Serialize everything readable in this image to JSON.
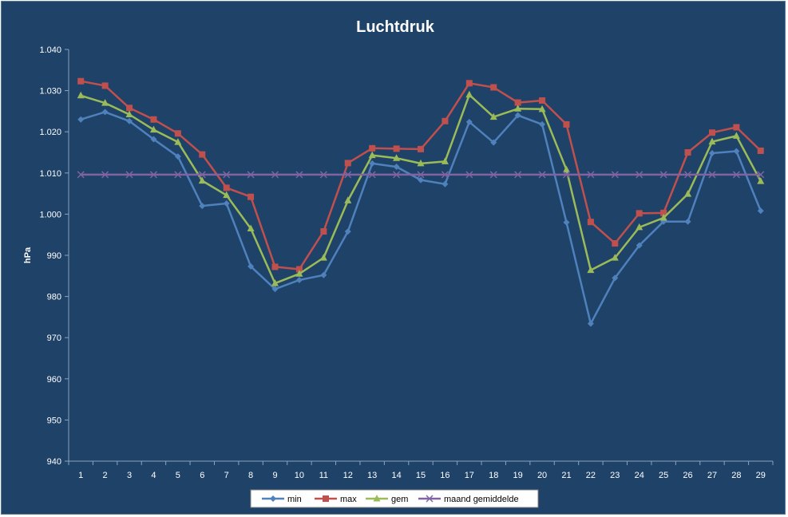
{
  "chart_data": {
    "type": "line",
    "title": "Luchtdruk",
    "xlabel": "",
    "ylabel": "hPa",
    "ylim": [
      940,
      1040
    ],
    "y_ticks": [
      940,
      950,
      960,
      970,
      980,
      990,
      1000,
      1010,
      1020,
      1030,
      1040
    ],
    "y_tick_labels": [
      "940",
      "950",
      "960",
      "970",
      "980",
      "990",
      "1.000",
      "1.010",
      "1.020",
      "1.030",
      "1.040"
    ],
    "categories": [
      "1",
      "2",
      "3",
      "4",
      "5",
      "6",
      "7",
      "8",
      "9",
      "10",
      "11",
      "12",
      "13",
      "14",
      "15",
      "16",
      "17",
      "18",
      "19",
      "20",
      "21",
      "22",
      "23",
      "24",
      "25",
      "26",
      "27",
      "28",
      "29"
    ],
    "grid": false,
    "legend_position": "bottom",
    "series": [
      {
        "name": "min",
        "color": "#4f81bd",
        "marker": "diamond",
        "values": [
          1023.0,
          1024.8,
          1022.6,
          1018.2,
          1014.0,
          1002.0,
          1002.6,
          987.3,
          981.8,
          984.0,
          985.2,
          995.8,
          1012.3,
          1011.5,
          1008.3,
          1007.3,
          1022.4,
          1017.4,
          1024.0,
          1021.8,
          998.0,
          973.4,
          984.5,
          992.4,
          998.2,
          998.2,
          1014.8,
          1015.3,
          1000.8
        ]
      },
      {
        "name": "max",
        "color": "#c0504d",
        "marker": "square",
        "values": [
          1032.3,
          1031.2,
          1025.8,
          1023.0,
          1019.6,
          1014.5,
          1006.4,
          1004.2,
          987.2,
          986.6,
          995.8,
          1012.4,
          1016.0,
          1015.9,
          1015.8,
          1022.6,
          1031.8,
          1030.8,
          1027.1,
          1027.6,
          1021.8,
          998.1,
          992.9,
          1000.2,
          1000.3,
          1015.0,
          1019.8,
          1021.1,
          1015.4
        ]
      },
      {
        "name": "gem",
        "color": "#9bbb59",
        "marker": "triangle",
        "values": [
          1028.8,
          1027.0,
          1024.2,
          1020.5,
          1017.5,
          1008.1,
          1004.6,
          996.5,
          983.2,
          985.5,
          989.4,
          1003.3,
          1014.3,
          1013.6,
          1012.3,
          1012.8,
          1029.0,
          1023.6,
          1025.6,
          1025.5,
          1010.8,
          986.4,
          989.4,
          996.8,
          999.1,
          1004.9,
          1017.6,
          1019.0,
          1008.0
        ]
      },
      {
        "name": "maand gemiddelde",
        "color": "#8064a2",
        "marker": "x",
        "values": [
          1009.6,
          1009.6,
          1009.6,
          1009.6,
          1009.6,
          1009.6,
          1009.6,
          1009.6,
          1009.6,
          1009.6,
          1009.6,
          1009.6,
          1009.6,
          1009.6,
          1009.6,
          1009.6,
          1009.6,
          1009.6,
          1009.6,
          1009.6,
          1009.6,
          1009.6,
          1009.6,
          1009.6,
          1009.6,
          1009.6,
          1009.6,
          1009.6,
          1009.6
        ]
      }
    ]
  }
}
